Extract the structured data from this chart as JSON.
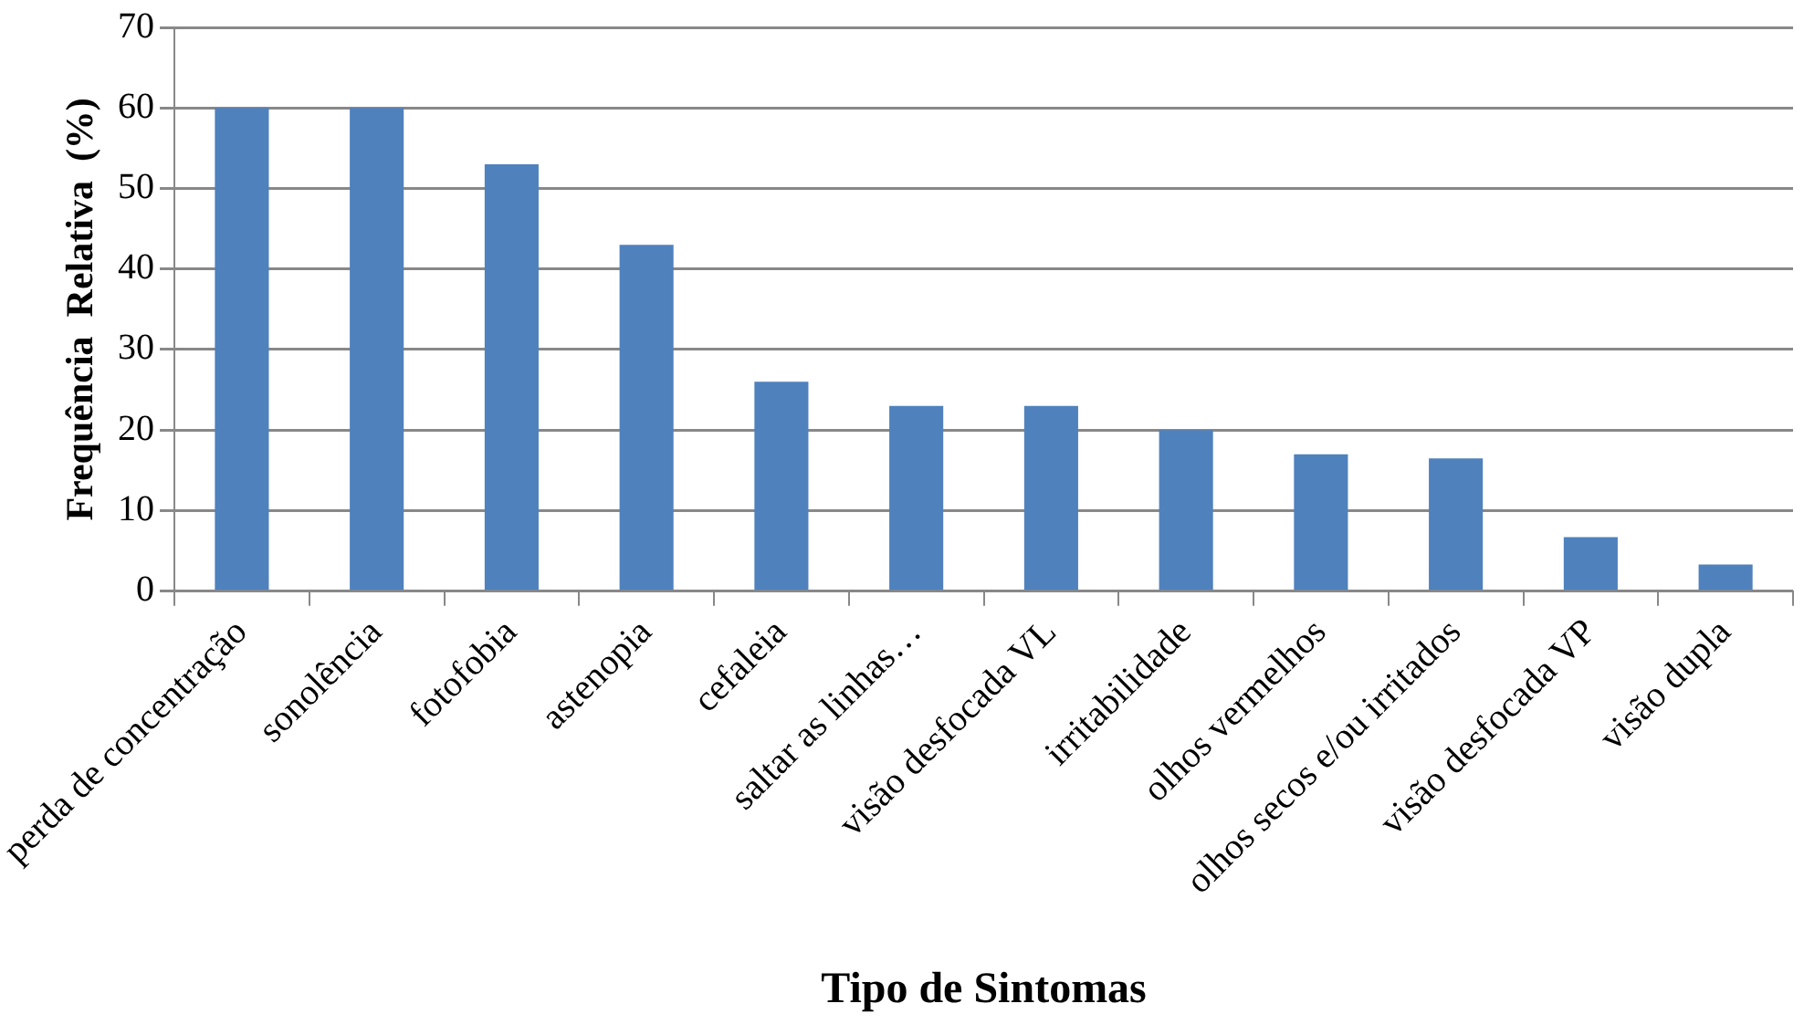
{
  "chart_data": {
    "type": "bar",
    "xlabel": "Tipo de Sintomas",
    "ylabel": "Frequência  Relativa  (%)",
    "categories": [
      "perda de concentração",
      "sonolência",
      "fotofobia",
      "astenopia",
      "cefaleia",
      "saltar as linhas…",
      "visão desfocada VL",
      "irritabilidade",
      "olhos vermelhos",
      "olhos secos e/ou irritados",
      "visão desfocada VP",
      "visão dupla"
    ],
    "values": [
      60,
      60,
      53,
      43,
      26,
      23,
      23,
      20,
      17,
      16.5,
      6.7,
      3.3
    ],
    "color": "#4f81bd",
    "ylim": [
      0,
      70
    ],
    "yticks": [
      0,
      10,
      20,
      30,
      40,
      50,
      60,
      70
    ],
    "grid": "y",
    "legend": false
  }
}
